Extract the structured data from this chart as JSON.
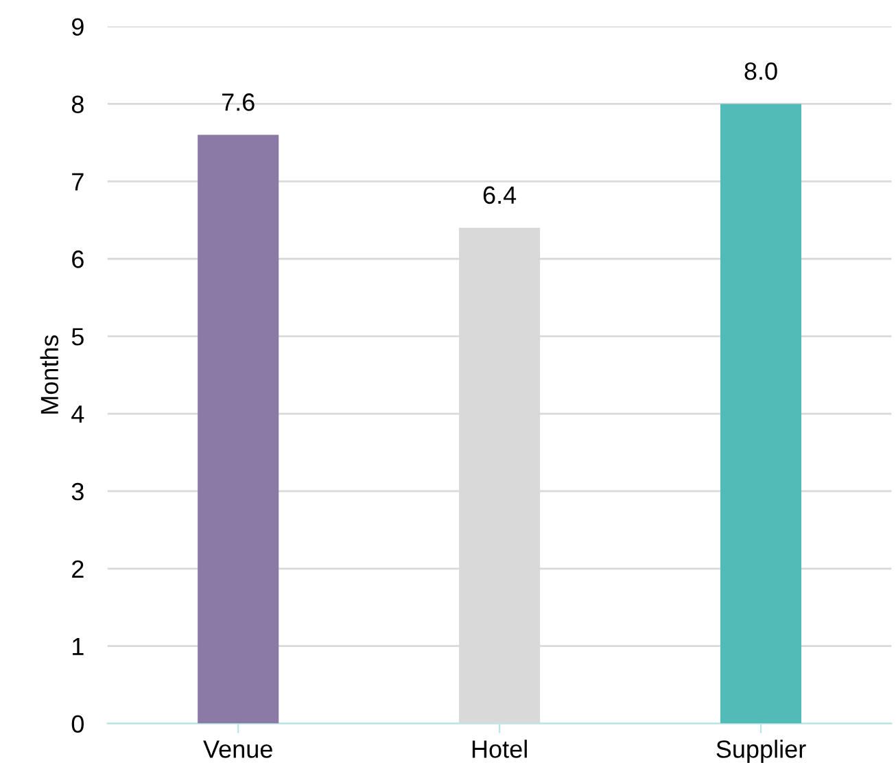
{
  "chart_data": {
    "type": "bar",
    "ylabel": "Months",
    "categories": [
      "Venue",
      "Hotel",
      "Supplier"
    ],
    "values": [
      7.6,
      6.4,
      8.0
    ],
    "colors": [
      "#8c7aa6",
      "#d9d9d9",
      "#52bbb7"
    ],
    "value_labels": [
      "7.6",
      "6.4",
      "8.0"
    ],
    "ylim": [
      0,
      9
    ],
    "yticks": [
      0,
      1,
      2,
      3,
      4,
      5,
      6,
      7,
      8,
      9
    ],
    "grid": "y"
  }
}
